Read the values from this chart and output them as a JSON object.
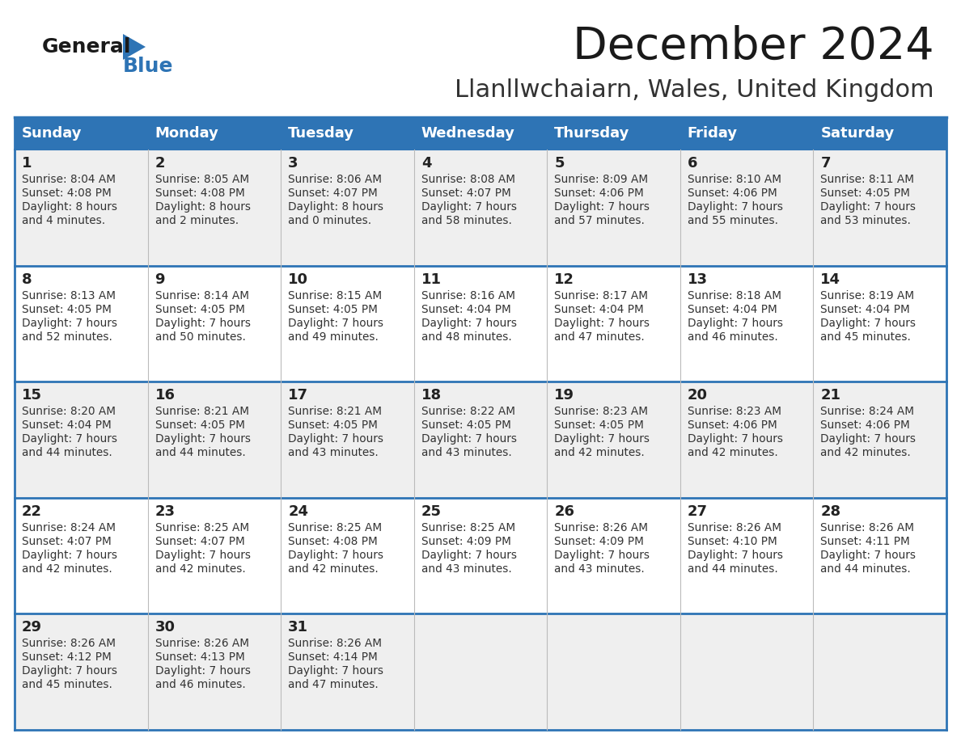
{
  "title": "December 2024",
  "subtitle": "Llanllwchaiarn, Wales, United Kingdom",
  "header_bg_color": "#2E74B5",
  "header_text_color": "#FFFFFF",
  "day_names": [
    "Sunday",
    "Monday",
    "Tuesday",
    "Wednesday",
    "Thursday",
    "Friday",
    "Saturday"
  ],
  "row_bg_colors": [
    "#EFEFEF",
    "#FFFFFF",
    "#EFEFEF",
    "#FFFFFF",
    "#EFEFEF"
  ],
  "border_color": "#2E74B5",
  "cell_border_color": "#BBBBBB",
  "date_text_color": "#222222",
  "info_text_color": "#333333",
  "logo_general_color": "#1a1a1a",
  "logo_blue_color": "#2E74B5",
  "weeks": [
    [
      {
        "day": 1,
        "sunrise": "8:04 AM",
        "sunset": "4:08 PM",
        "daylight_h": "8 hours",
        "daylight_m": "and 4 minutes."
      },
      {
        "day": 2,
        "sunrise": "8:05 AM",
        "sunset": "4:08 PM",
        "daylight_h": "8 hours",
        "daylight_m": "and 2 minutes."
      },
      {
        "day": 3,
        "sunrise": "8:06 AM",
        "sunset": "4:07 PM",
        "daylight_h": "8 hours",
        "daylight_m": "and 0 minutes."
      },
      {
        "day": 4,
        "sunrise": "8:08 AM",
        "sunset": "4:07 PM",
        "daylight_h": "7 hours",
        "daylight_m": "and 58 minutes."
      },
      {
        "day": 5,
        "sunrise": "8:09 AM",
        "sunset": "4:06 PM",
        "daylight_h": "7 hours",
        "daylight_m": "and 57 minutes."
      },
      {
        "day": 6,
        "sunrise": "8:10 AM",
        "sunset": "4:06 PM",
        "daylight_h": "7 hours",
        "daylight_m": "and 55 minutes."
      },
      {
        "day": 7,
        "sunrise": "8:11 AM",
        "sunset": "4:05 PM",
        "daylight_h": "7 hours",
        "daylight_m": "and 53 minutes."
      }
    ],
    [
      {
        "day": 8,
        "sunrise": "8:13 AM",
        "sunset": "4:05 PM",
        "daylight_h": "7 hours",
        "daylight_m": "and 52 minutes."
      },
      {
        "day": 9,
        "sunrise": "8:14 AM",
        "sunset": "4:05 PM",
        "daylight_h": "7 hours",
        "daylight_m": "and 50 minutes."
      },
      {
        "day": 10,
        "sunrise": "8:15 AM",
        "sunset": "4:05 PM",
        "daylight_h": "7 hours",
        "daylight_m": "and 49 minutes."
      },
      {
        "day": 11,
        "sunrise": "8:16 AM",
        "sunset": "4:04 PM",
        "daylight_h": "7 hours",
        "daylight_m": "and 48 minutes."
      },
      {
        "day": 12,
        "sunrise": "8:17 AM",
        "sunset": "4:04 PM",
        "daylight_h": "7 hours",
        "daylight_m": "and 47 minutes."
      },
      {
        "day": 13,
        "sunrise": "8:18 AM",
        "sunset": "4:04 PM",
        "daylight_h": "7 hours",
        "daylight_m": "and 46 minutes."
      },
      {
        "day": 14,
        "sunrise": "8:19 AM",
        "sunset": "4:04 PM",
        "daylight_h": "7 hours",
        "daylight_m": "and 45 minutes."
      }
    ],
    [
      {
        "day": 15,
        "sunrise": "8:20 AM",
        "sunset": "4:04 PM",
        "daylight_h": "7 hours",
        "daylight_m": "and 44 minutes."
      },
      {
        "day": 16,
        "sunrise": "8:21 AM",
        "sunset": "4:05 PM",
        "daylight_h": "7 hours",
        "daylight_m": "and 44 minutes."
      },
      {
        "day": 17,
        "sunrise": "8:21 AM",
        "sunset": "4:05 PM",
        "daylight_h": "7 hours",
        "daylight_m": "and 43 minutes."
      },
      {
        "day": 18,
        "sunrise": "8:22 AM",
        "sunset": "4:05 PM",
        "daylight_h": "7 hours",
        "daylight_m": "and 43 minutes."
      },
      {
        "day": 19,
        "sunrise": "8:23 AM",
        "sunset": "4:05 PM",
        "daylight_h": "7 hours",
        "daylight_m": "and 42 minutes."
      },
      {
        "day": 20,
        "sunrise": "8:23 AM",
        "sunset": "4:06 PM",
        "daylight_h": "7 hours",
        "daylight_m": "and 42 minutes."
      },
      {
        "day": 21,
        "sunrise": "8:24 AM",
        "sunset": "4:06 PM",
        "daylight_h": "7 hours",
        "daylight_m": "and 42 minutes."
      }
    ],
    [
      {
        "day": 22,
        "sunrise": "8:24 AM",
        "sunset": "4:07 PM",
        "daylight_h": "7 hours",
        "daylight_m": "and 42 minutes."
      },
      {
        "day": 23,
        "sunrise": "8:25 AM",
        "sunset": "4:07 PM",
        "daylight_h": "7 hours",
        "daylight_m": "and 42 minutes."
      },
      {
        "day": 24,
        "sunrise": "8:25 AM",
        "sunset": "4:08 PM",
        "daylight_h": "7 hours",
        "daylight_m": "and 42 minutes."
      },
      {
        "day": 25,
        "sunrise": "8:25 AM",
        "sunset": "4:09 PM",
        "daylight_h": "7 hours",
        "daylight_m": "and 43 minutes."
      },
      {
        "day": 26,
        "sunrise": "8:26 AM",
        "sunset": "4:09 PM",
        "daylight_h": "7 hours",
        "daylight_m": "and 43 minutes."
      },
      {
        "day": 27,
        "sunrise": "8:26 AM",
        "sunset": "4:10 PM",
        "daylight_h": "7 hours",
        "daylight_m": "and 44 minutes."
      },
      {
        "day": 28,
        "sunrise": "8:26 AM",
        "sunset": "4:11 PM",
        "daylight_h": "7 hours",
        "daylight_m": "and 44 minutes."
      }
    ],
    [
      {
        "day": 29,
        "sunrise": "8:26 AM",
        "sunset": "4:12 PM",
        "daylight_h": "7 hours",
        "daylight_m": "and 45 minutes."
      },
      {
        "day": 30,
        "sunrise": "8:26 AM",
        "sunset": "4:13 PM",
        "daylight_h": "7 hours",
        "daylight_m": "and 46 minutes."
      },
      {
        "day": 31,
        "sunrise": "8:26 AM",
        "sunset": "4:14 PM",
        "daylight_h": "7 hours",
        "daylight_m": "and 47 minutes."
      },
      null,
      null,
      null,
      null
    ]
  ]
}
